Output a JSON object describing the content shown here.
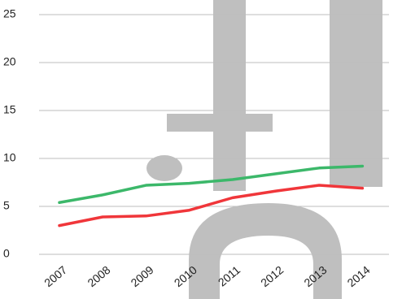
{
  "chart_data": {
    "type": "line",
    "categories": [
      "2007",
      "2008",
      "2009",
      "2010",
      "2011",
      "2012",
      "2013",
      "2014"
    ],
    "series": [
      {
        "color": "#3cb86a",
        "values": [
          5.4,
          6.2,
          7.2,
          7.4,
          7.8,
          8.4,
          9.0,
          9.2
        ]
      },
      {
        "color": "#f0363a",
        "values": [
          3.0,
          3.9,
          4.0,
          4.6,
          5.9,
          6.6,
          7.2,
          6.9
        ]
      }
    ],
    "ylim": [
      0,
      25
    ],
    "yticks": [
      0,
      5,
      10,
      15,
      20,
      25
    ],
    "grid": true
  }
}
